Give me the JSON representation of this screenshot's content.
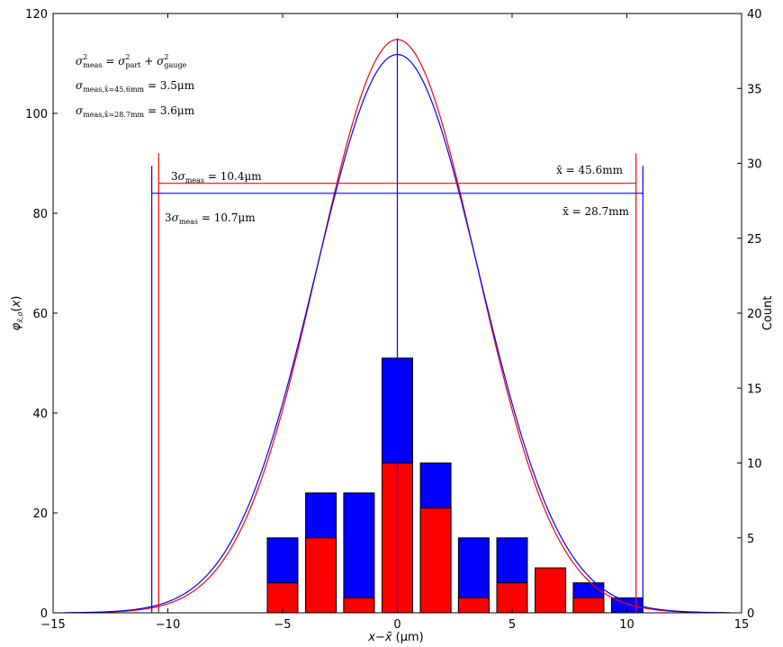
{
  "chart_data": {
    "type": "bar",
    "x_axis": {
      "label": "x−x̄ (μm)",
      "range": [
        -15,
        15
      ],
      "ticks": [
        -15,
        -10,
        -5,
        0,
        5,
        10,
        15
      ],
      "tick_labels": [
        "−15",
        "−10",
        "−5",
        "0",
        "5",
        "10",
        "15"
      ]
    },
    "y_left": {
      "label": "φx̄,σ(x)",
      "range": [
        0,
        120
      ],
      "ticks": [
        0,
        20,
        40,
        60,
        80,
        100,
        120
      ],
      "tick_labels": [
        "0",
        "20",
        "40",
        "60",
        "80",
        "100",
        "120"
      ]
    },
    "y_right": {
      "label": "Count",
      "range": [
        0,
        40
      ],
      "ticks": [
        0,
        5,
        10,
        15,
        20,
        25,
        30,
        35,
        40
      ],
      "tick_labels": [
        "0",
        "5",
        "10",
        "15",
        "20",
        "25",
        "30",
        "35",
        "40"
      ]
    },
    "bars": {
      "x": [
        -5.0,
        -3.33,
        -1.67,
        0.0,
        1.67,
        3.33,
        5.0,
        6.67,
        8.33,
        10.0
      ],
      "blue_counts": [
        5,
        8,
        8,
        17,
        10,
        5,
        5,
        0,
        2,
        1
      ],
      "red_counts": [
        2,
        5,
        1,
        10,
        7,
        1,
        2,
        3,
        1,
        0
      ],
      "colors": {
        "blue": "#0000ff",
        "red": "#ff0000"
      }
    },
    "curves": [
      {
        "color": "#ff0000",
        "peak": 114.8,
        "sigma": 3.47,
        "x_range": [
          -14.2,
          14.2
        ]
      },
      {
        "color": "#0000ff",
        "peak": 111.8,
        "sigma": 3.57,
        "x_range": [
          -14.5,
          14.5
        ]
      }
    ],
    "vertical_lines": [
      {
        "x": 0.0,
        "y": [
          0,
          115
        ],
        "color": "#0000ff"
      },
      {
        "x": -10.4,
        "y": [
          0,
          92
        ],
        "color": "#ff0000"
      },
      {
        "x": 10.4,
        "y": [
          0,
          92
        ],
        "color": "#ff0000"
      },
      {
        "x": -10.7,
        "y": [
          0,
          89.5
        ],
        "color": "#0000ff"
      },
      {
        "x": 10.7,
        "y": [
          0,
          89.5
        ],
        "color": "#0000ff"
      }
    ],
    "horizontal_lines": [
      {
        "y": 86,
        "x": [
          -10.4,
          10.4
        ],
        "color": "#ff0000"
      },
      {
        "y": 84,
        "x": [
          -10.7,
          10.7
        ],
        "color": "#0000ff"
      }
    ],
    "annotations": {
      "formula1": "σ²meas = σ²part + σ²gauge",
      "formula2": "σmeas,x̄=45.6mm = 3.5μm",
      "formula3": "σmeas,x̄=28.7mm = 3.6μm",
      "red_width": "3σmeas = 10.4μm",
      "blue_width": "3σmeas = 10.7μm",
      "red_xbar": "x̄ = 45.6mm",
      "blue_xbar": "x̄ = 28.7mm"
    }
  }
}
